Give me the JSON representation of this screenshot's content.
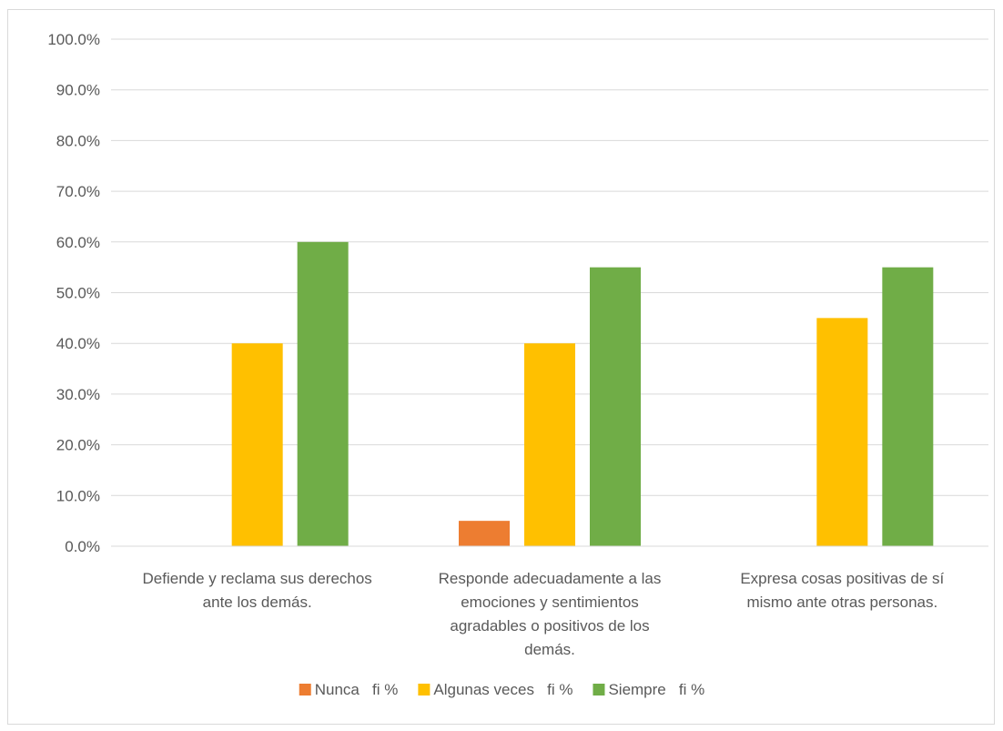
{
  "chart_data": {
    "type": "bar",
    "title": "",
    "xlabel": "",
    "ylabel": "",
    "categories": [
      "Defiende y reclama sus derechos ante los demás.",
      "Responde adecuadamente a las emociones y sentimientos agradables o positivos de los demás.",
      "Expresa cosas positivas de sí mismo ante otras personas."
    ],
    "category_lines": [
      [
        "Defiende y reclama sus derechos",
        "ante los demás."
      ],
      [
        "Responde adecuadamente a las",
        "emociones y sentimientos",
        "agradables o positivos de los",
        "demás."
      ],
      [
        "Expresa cosas positivas de sí",
        "mismo ante otras personas."
      ]
    ],
    "series": [
      {
        "name": "Nunca   fi %",
        "color": "#ed7d31",
        "values": [
          0,
          5,
          0
        ]
      },
      {
        "name": "Algunas veces   fi %",
        "color": "#ffc000",
        "values": [
          40,
          40,
          45
        ]
      },
      {
        "name": "Siempre   fi %",
        "color": "#70ad47",
        "values": [
          60,
          55,
          55
        ]
      }
    ],
    "ylim": [
      0,
      100
    ],
    "yticks": [
      "0.0%",
      "10.0%",
      "20.0%",
      "30.0%",
      "40.0%",
      "50.0%",
      "60.0%",
      "70.0%",
      "80.0%",
      "90.0%",
      "100.0%"
    ],
    "grid": true,
    "legend_position": "bottom"
  }
}
